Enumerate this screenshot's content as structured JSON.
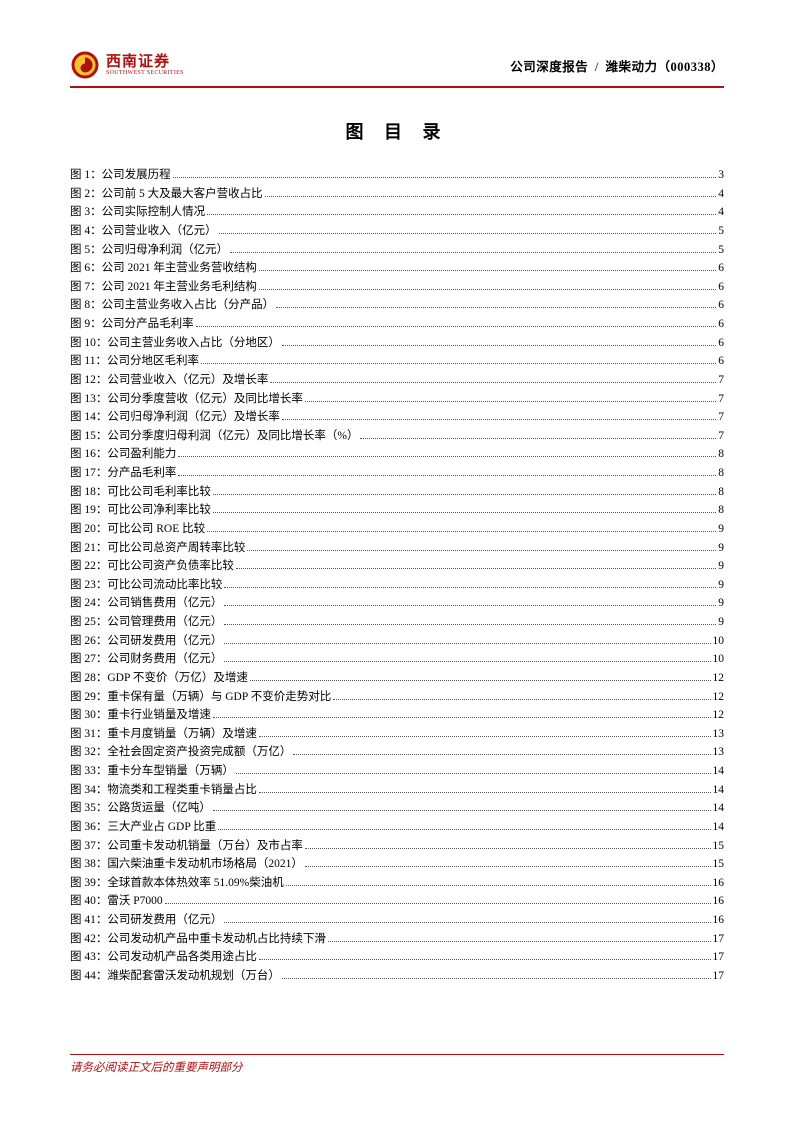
{
  "colors": {
    "brand_red": "#b01010",
    "text": "#000000",
    "dots": "#555555",
    "background": "#ffffff"
  },
  "typography": {
    "body_fontsize_pt": 9,
    "title_fontsize_pt": 14,
    "header_fontsize_pt": 10,
    "line_height": 1.62,
    "font_family": "SimSun"
  },
  "logo": {
    "cn": "西南证券",
    "en": "SOUTHWEST SECURITIES",
    "swirl_outer": "#b01010",
    "swirl_inner": "#f4c430"
  },
  "header": {
    "left_part": "公司深度报告 ",
    "separator": "/",
    "right_part": " 潍柴动力（000338）"
  },
  "toc_title": "图 目 录",
  "toc": [
    {
      "label": "图 1：公司发展历程",
      "page": "3"
    },
    {
      "label": "图 2：公司前 5 大及最大客户营收占比",
      "page": "4"
    },
    {
      "label": "图 3：公司实际控制人情况",
      "page": "4"
    },
    {
      "label": "图 4：公司营业收入（亿元）",
      "page": "5"
    },
    {
      "label": "图 5：公司归母净利润（亿元）",
      "page": "5"
    },
    {
      "label": "图 6：公司 2021 年主营业务营收结构",
      "page": "6"
    },
    {
      "label": "图 7：公司 2021 年主营业务毛利结构",
      "page": "6"
    },
    {
      "label": "图 8：公司主营业务收入占比（分产品）",
      "page": "6"
    },
    {
      "label": "图 9：公司分产品毛利率",
      "page": "6"
    },
    {
      "label": "图 10：公司主营业务收入占比（分地区）",
      "page": "6"
    },
    {
      "label": "图 11：公司分地区毛利率",
      "page": "6"
    },
    {
      "label": "图 12：公司营业收入（亿元）及增长率",
      "page": "7"
    },
    {
      "label": "图 13：公司分季度营收（亿元）及同比增长率",
      "page": "7"
    },
    {
      "label": "图 14：公司归母净利润（亿元）及增长率",
      "page": "7"
    },
    {
      "label": "图 15：公司分季度归母利润（亿元）及同比增长率（%）",
      "page": "7"
    },
    {
      "label": "图 16：公司盈利能力",
      "page": "8"
    },
    {
      "label": "图 17：分产品毛利率",
      "page": "8"
    },
    {
      "label": "图 18：可比公司毛利率比较",
      "page": "8"
    },
    {
      "label": "图 19：可比公司净利率比较",
      "page": "8"
    },
    {
      "label": "图 20：可比公司 ROE 比较",
      "page": "9"
    },
    {
      "label": "图 21：可比公司总资产周转率比较",
      "page": "9"
    },
    {
      "label": "图 22：可比公司资产负债率比较",
      "page": "9"
    },
    {
      "label": "图 23：可比公司流动比率比较",
      "page": "9"
    },
    {
      "label": "图 24：公司销售费用（亿元）",
      "page": "9"
    },
    {
      "label": "图 25：公司管理费用（亿元）",
      "page": "9"
    },
    {
      "label": "图 26：公司研发费用（亿元）",
      "page": "10"
    },
    {
      "label": "图 27：公司财务费用（亿元）",
      "page": "10"
    },
    {
      "label": "图 28：GDP 不变价（万亿）及增速",
      "page": "12"
    },
    {
      "label": "图 29：重卡保有量（万辆）与 GDP 不变价走势对比",
      "page": "12"
    },
    {
      "label": "图 30：重卡行业销量及增速",
      "page": "12"
    },
    {
      "label": "图 31：重卡月度销量（万辆）及增速",
      "page": "13"
    },
    {
      "label": "图 32：全社会固定资产投资完成额（万亿）",
      "page": "13"
    },
    {
      "label": "图 33：重卡分车型销量（万辆）",
      "page": "14"
    },
    {
      "label": "图 34：物流类和工程类重卡销量占比",
      "page": "14"
    },
    {
      "label": "图 35：公路货运量（亿吨）",
      "page": "14"
    },
    {
      "label": "图 36：三大产业占 GDP 比重",
      "page": "14"
    },
    {
      "label": "图 37：公司重卡发动机销量（万台）及市占率",
      "page": "15"
    },
    {
      "label": "图 38：国六柴油重卡发动机市场格局（2021）",
      "page": "15"
    },
    {
      "label": "图 39：全球首款本体热效率 51.09%柴油机",
      "page": "16"
    },
    {
      "label": "图 40：雷沃 P7000",
      "page": "16"
    },
    {
      "label": "图 41：公司研发费用（亿元）",
      "page": "16"
    },
    {
      "label": "图 42：公司发动机产品中重卡发动机占比持续下滑",
      "page": "17"
    },
    {
      "label": "图 43：公司发动机产品各类用途占比",
      "page": "17"
    },
    {
      "label": "图 44：潍柴配套雷沃发动机规划（万台）",
      "page": "17"
    }
  ],
  "footer": "请务必阅读正文后的重要声明部分"
}
